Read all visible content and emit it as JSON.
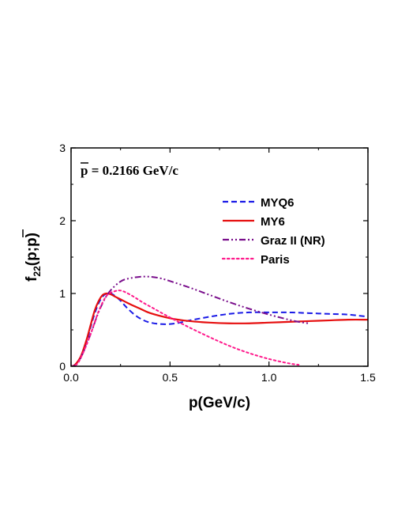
{
  "chart_data": {
    "type": "line",
    "xlabel": "p(GeV/c)",
    "ylabel": "f",
    "ylabel_sub": "22",
    "ylabel_args": "(p;p)",
    "annotation": {
      "symbol": "p",
      "text": " = 0.2166 GeV/c"
    },
    "xlim": [
      0,
      1.5
    ],
    "ylim": [
      0,
      3
    ],
    "x_ticks": [
      0.0,
      0.5,
      1.0,
      1.5
    ],
    "x_tick_labels": [
      "0.0",
      "0.5",
      "1.0",
      "1.5"
    ],
    "y_ticks": [
      0,
      1,
      2,
      3
    ],
    "y_tick_labels": [
      "0",
      "1",
      "2",
      "3"
    ],
    "legend_position": "upper-right",
    "grid": false,
    "series": [
      {
        "name": "MYQ6",
        "color": "#1a1ae6",
        "dash": "dashed",
        "x": [
          0.0,
          0.02,
          0.05,
          0.08,
          0.1,
          0.12,
          0.14,
          0.16,
          0.18,
          0.2,
          0.22,
          0.25,
          0.28,
          0.32,
          0.36,
          0.4,
          0.45,
          0.5,
          0.55,
          0.6,
          0.7,
          0.8,
          0.9,
          1.0,
          1.1,
          1.2,
          1.3,
          1.4,
          1.5
        ],
        "y": [
          0.0,
          0.02,
          0.13,
          0.35,
          0.55,
          0.73,
          0.87,
          0.96,
          1.0,
          1.0,
          0.97,
          0.9,
          0.81,
          0.71,
          0.64,
          0.6,
          0.58,
          0.58,
          0.6,
          0.63,
          0.68,
          0.72,
          0.74,
          0.74,
          0.74,
          0.73,
          0.72,
          0.71,
          0.68
        ]
      },
      {
        "name": "MY6",
        "color": "#e60f0f",
        "dash": "solid",
        "x": [
          0.0,
          0.02,
          0.05,
          0.08,
          0.1,
          0.12,
          0.14,
          0.16,
          0.18,
          0.2,
          0.22,
          0.25,
          0.3,
          0.35,
          0.4,
          0.5,
          0.6,
          0.7,
          0.8,
          0.9,
          1.0,
          1.1,
          1.2,
          1.3,
          1.4,
          1.5
        ],
        "y": [
          0.0,
          0.02,
          0.14,
          0.38,
          0.58,
          0.77,
          0.9,
          0.98,
          1.0,
          0.99,
          0.96,
          0.92,
          0.85,
          0.79,
          0.73,
          0.66,
          0.62,
          0.6,
          0.59,
          0.59,
          0.6,
          0.61,
          0.62,
          0.63,
          0.64,
          0.64
        ]
      },
      {
        "name": "Graz II (NR)",
        "color": "#7a0f8c",
        "dash": "dash-dot-dot",
        "x": [
          0.0,
          0.03,
          0.06,
          0.1,
          0.14,
          0.18,
          0.22,
          0.26,
          0.3,
          0.35,
          0.4,
          0.45,
          0.5,
          0.6,
          0.7,
          0.8,
          0.9,
          1.0,
          1.1,
          1.15,
          1.2
        ],
        "y": [
          0.0,
          0.03,
          0.18,
          0.45,
          0.75,
          0.97,
          1.1,
          1.18,
          1.21,
          1.23,
          1.23,
          1.21,
          1.17,
          1.08,
          0.98,
          0.88,
          0.79,
          0.71,
          0.64,
          0.61,
          0.59
        ]
      },
      {
        "name": "Paris",
        "color": "#ff1a8c",
        "dash": "dotted",
        "x": [
          0.0,
          0.03,
          0.06,
          0.1,
          0.14,
          0.18,
          0.22,
          0.25,
          0.28,
          0.32,
          0.36,
          0.4,
          0.5,
          0.6,
          0.7,
          0.8,
          0.9,
          1.0,
          1.1,
          1.15
        ],
        "y": [
          0.0,
          0.03,
          0.18,
          0.45,
          0.76,
          0.97,
          1.03,
          1.04,
          1.01,
          0.95,
          0.88,
          0.82,
          0.67,
          0.53,
          0.4,
          0.28,
          0.18,
          0.1,
          0.04,
          0.02
        ]
      }
    ]
  }
}
